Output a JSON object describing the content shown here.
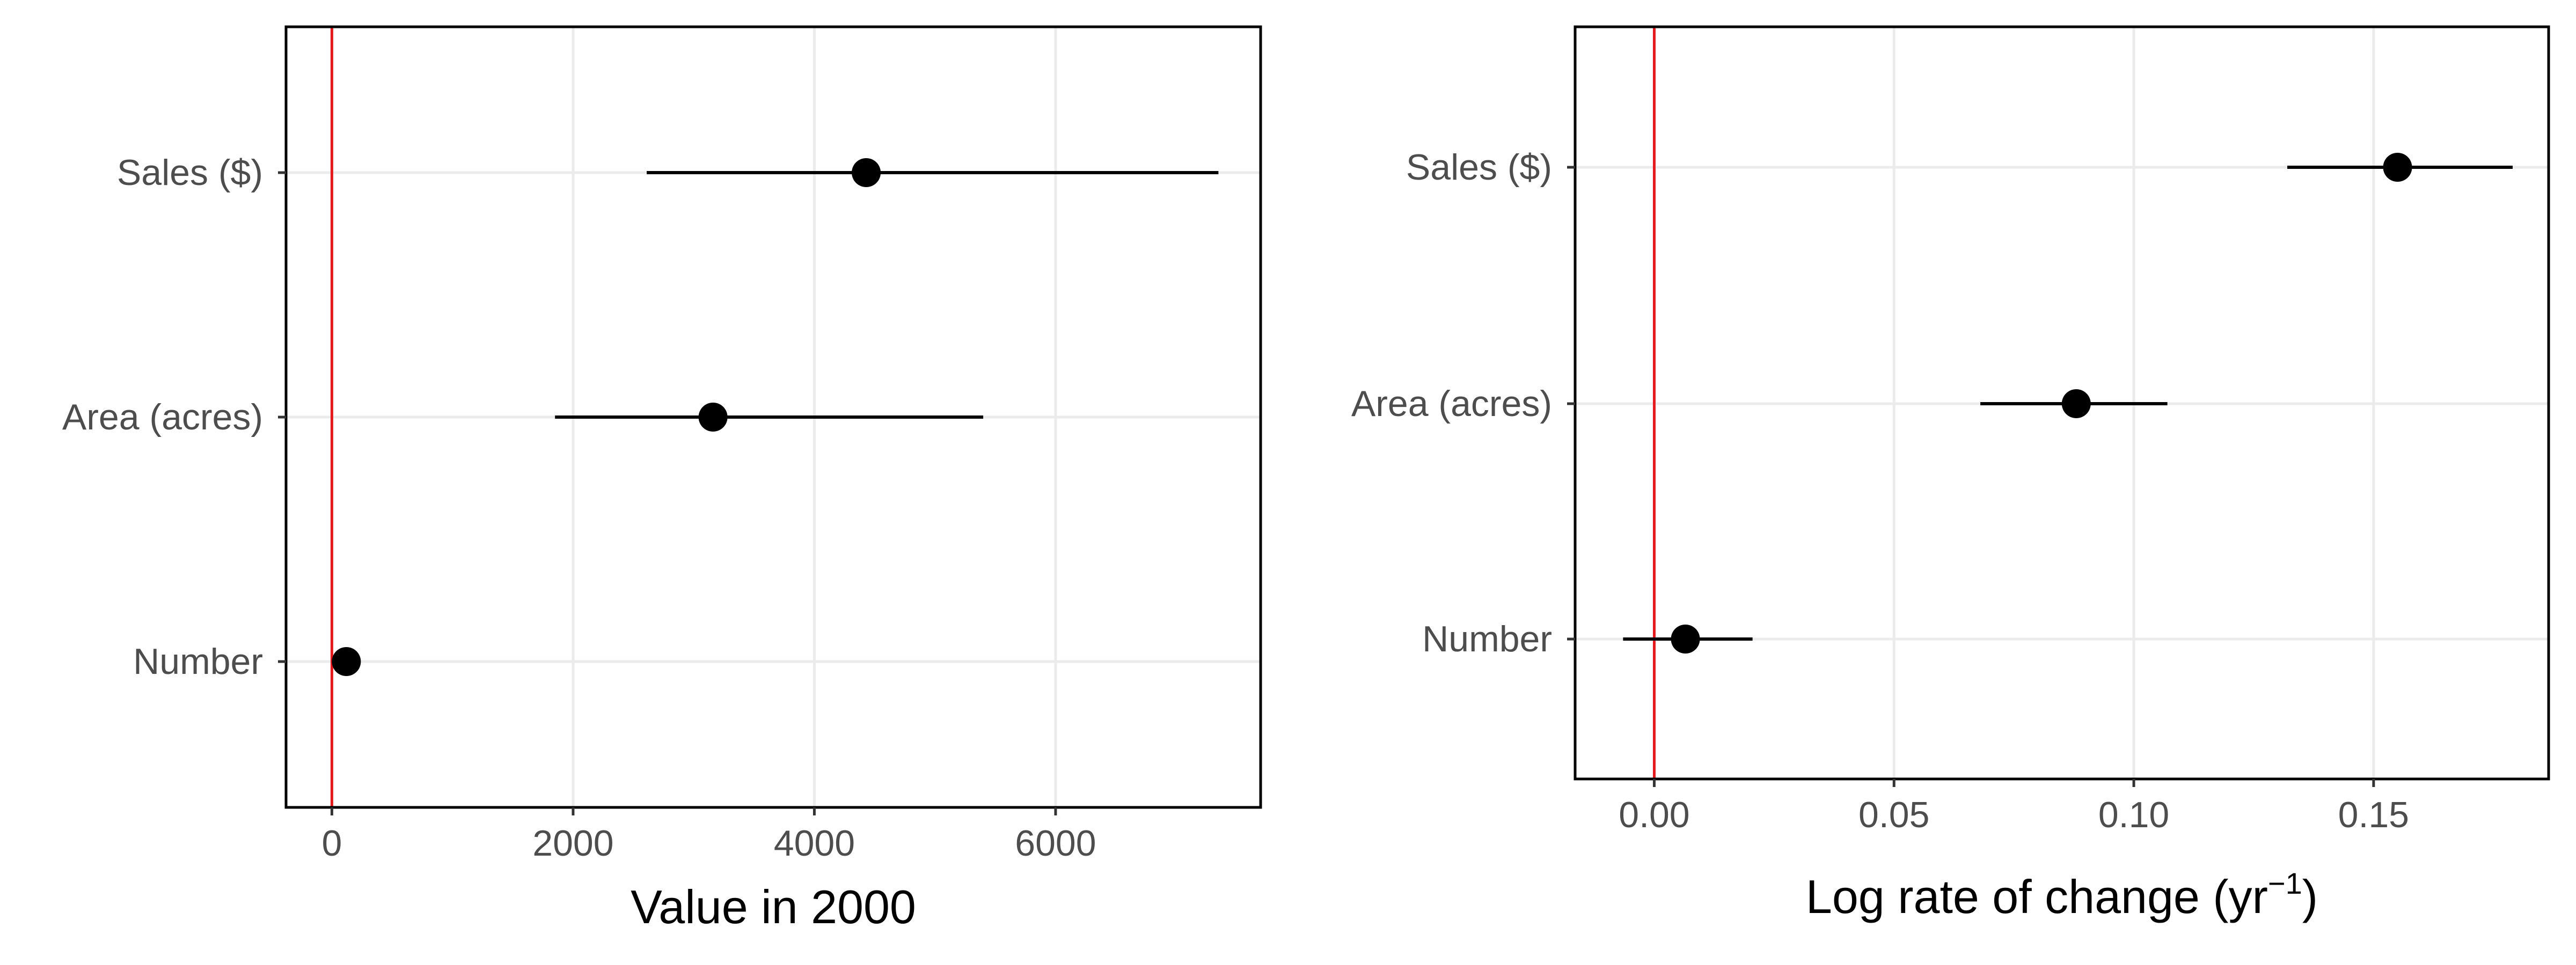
{
  "chart_data": [
    {
      "type": "scatter",
      "subtype": "dot-and-whisker",
      "title": "",
      "xlabel": "Value in 2000",
      "ylabel": "",
      "xlim": [
        -380,
        7700
      ],
      "xticks": [
        0,
        2000,
        4000,
        6000
      ],
      "xtick_labels": [
        "0",
        "2000",
        "4000",
        "6000"
      ],
      "categories": [
        "Sales ($)",
        "Area (acres)",
        "Number"
      ],
      "points": [
        {
          "category": "Sales ($)",
          "value": 4430,
          "lower": 2610,
          "upper": 7350
        },
        {
          "category": "Area (acres)",
          "value": 3160,
          "lower": 1850,
          "upper": 5400
        },
        {
          "category": "Number",
          "value": 120,
          "lower": 120,
          "upper": 120
        }
      ],
      "reference_line": {
        "x": 0,
        "color": "#e41a1c"
      },
      "grid": true,
      "legend": "none"
    },
    {
      "type": "scatter",
      "subtype": "dot-and-whisker",
      "title": "",
      "xlabel_main": "Log rate of change (yr",
      "xlabel_sup": "−1",
      "xlabel_close": ")",
      "ylabel": "",
      "xlim": [
        -0.0165,
        0.1865
      ],
      "xticks": [
        0,
        0.05,
        0.1,
        0.15
      ],
      "xtick_labels": [
        "0.00",
        "0.05",
        "0.10",
        "0.15"
      ],
      "categories": [
        "Sales ($)",
        "Area (acres)",
        "Number"
      ],
      "points": [
        {
          "category": "Sales ($)",
          "value": 0.155,
          "lower": 0.132,
          "upper": 0.179
        },
        {
          "category": "Area (acres)",
          "value": 0.088,
          "lower": 0.068,
          "upper": 0.107
        },
        {
          "category": "Number",
          "value": 0.0065,
          "lower": -0.0065,
          "upper": 0.0205
        }
      ],
      "reference_line": {
        "x": 0,
        "color": "#e41a1c"
      },
      "grid": true,
      "legend": "none"
    }
  ]
}
